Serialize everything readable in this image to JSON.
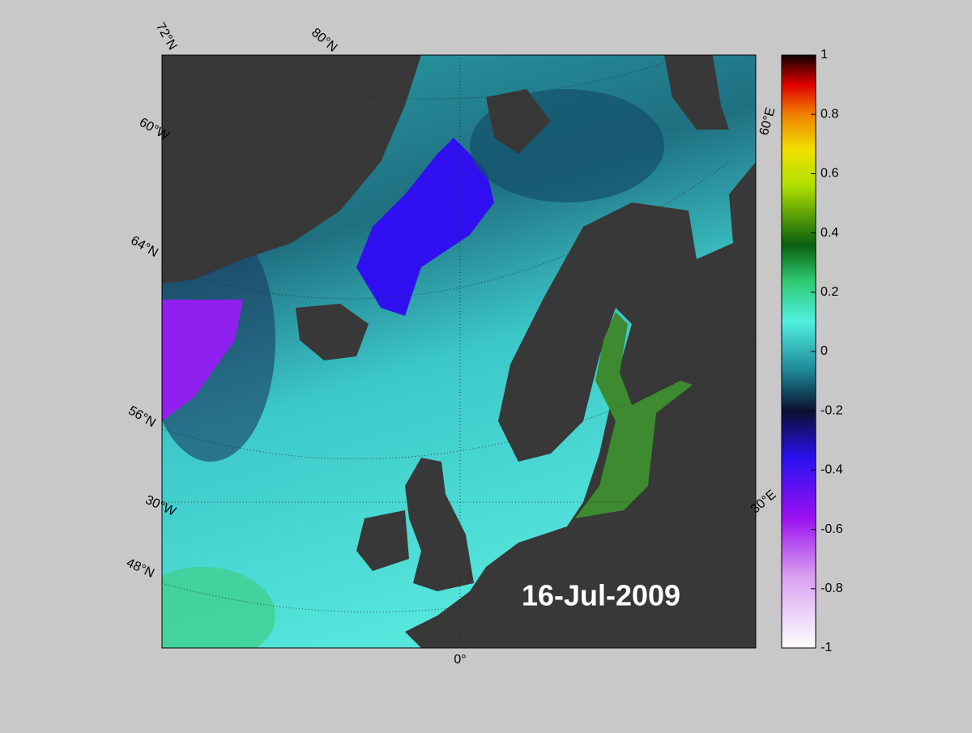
{
  "map": {
    "date": "16-Jul-2009",
    "graticule_labels": [
      "72°N",
      "80°N",
      "60°W",
      "64°N",
      "56°N",
      "30°W",
      "48°N",
      "0°",
      "60°E",
      "30°E"
    ],
    "colorbar": {
      "lim": [
        -1,
        1
      ],
      "ticks": [
        -1,
        -0.8,
        -0.6,
        -0.4,
        -0.2,
        0,
        0.2,
        0.4,
        0.6,
        0.8,
        1
      ]
    }
  }
}
